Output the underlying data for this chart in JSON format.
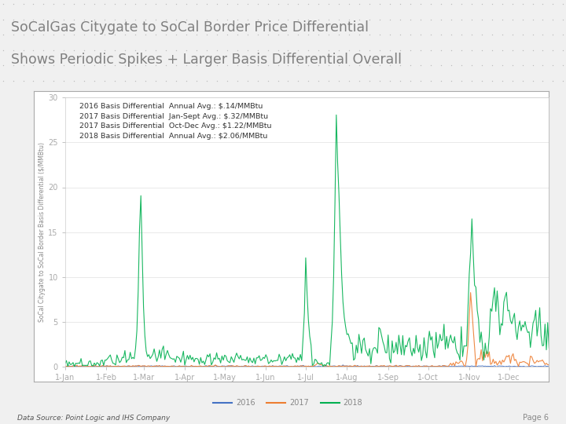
{
  "title_line1": "SoCalGas Citygate to SoCal Border Price Differential",
  "title_line2": "Shows Periodic Spikes + Larger Basis Differential Overall",
  "ylabel": "SoCal Citygate to SoCal Border Basis Differential ($/MMBtu)",
  "ylim": [
    0,
    30
  ],
  "yticks": [
    0,
    5,
    10,
    15,
    20,
    25,
    30
  ],
  "xtick_labels": [
    "1-Jan",
    "1-Feb",
    "1-Mar",
    "1-Apr",
    "1-May",
    "1-Jun",
    "1-Jul",
    "1-Aug",
    "1-Sep",
    "1-Oct",
    "1-Nov",
    "1-Dec"
  ],
  "legend_labels": [
    "2016",
    "2017",
    "2018"
  ],
  "legend_colors": [
    "#4472c4",
    "#ed7d31",
    "#00b050"
  ],
  "annotation_lines": [
    "2016 Basis Differential  Annual Avg.: $.14/MMBtu",
    "2017 Basis Differential  Jan-Sept Avg.: $.32/MMBtu",
    "2017 Basis Differential  Oct-Dec Avg.: $1.22/MMBtu",
    "2018 Basis Differential  Annual Avg.: $2.06/MMBtu"
  ],
  "bg_color": "#f0f0f0",
  "header_bg": "#e8e8e8",
  "plot_bg": "#ffffff",
  "title_color": "#808080",
  "text_color": "#606060",
  "grid_color": "#e0e0e0",
  "border_color": "#4472c4",
  "datasource": "Data Source: Point Logic and IHS Company",
  "page_label": "Page 6",
  "n_points": 365
}
